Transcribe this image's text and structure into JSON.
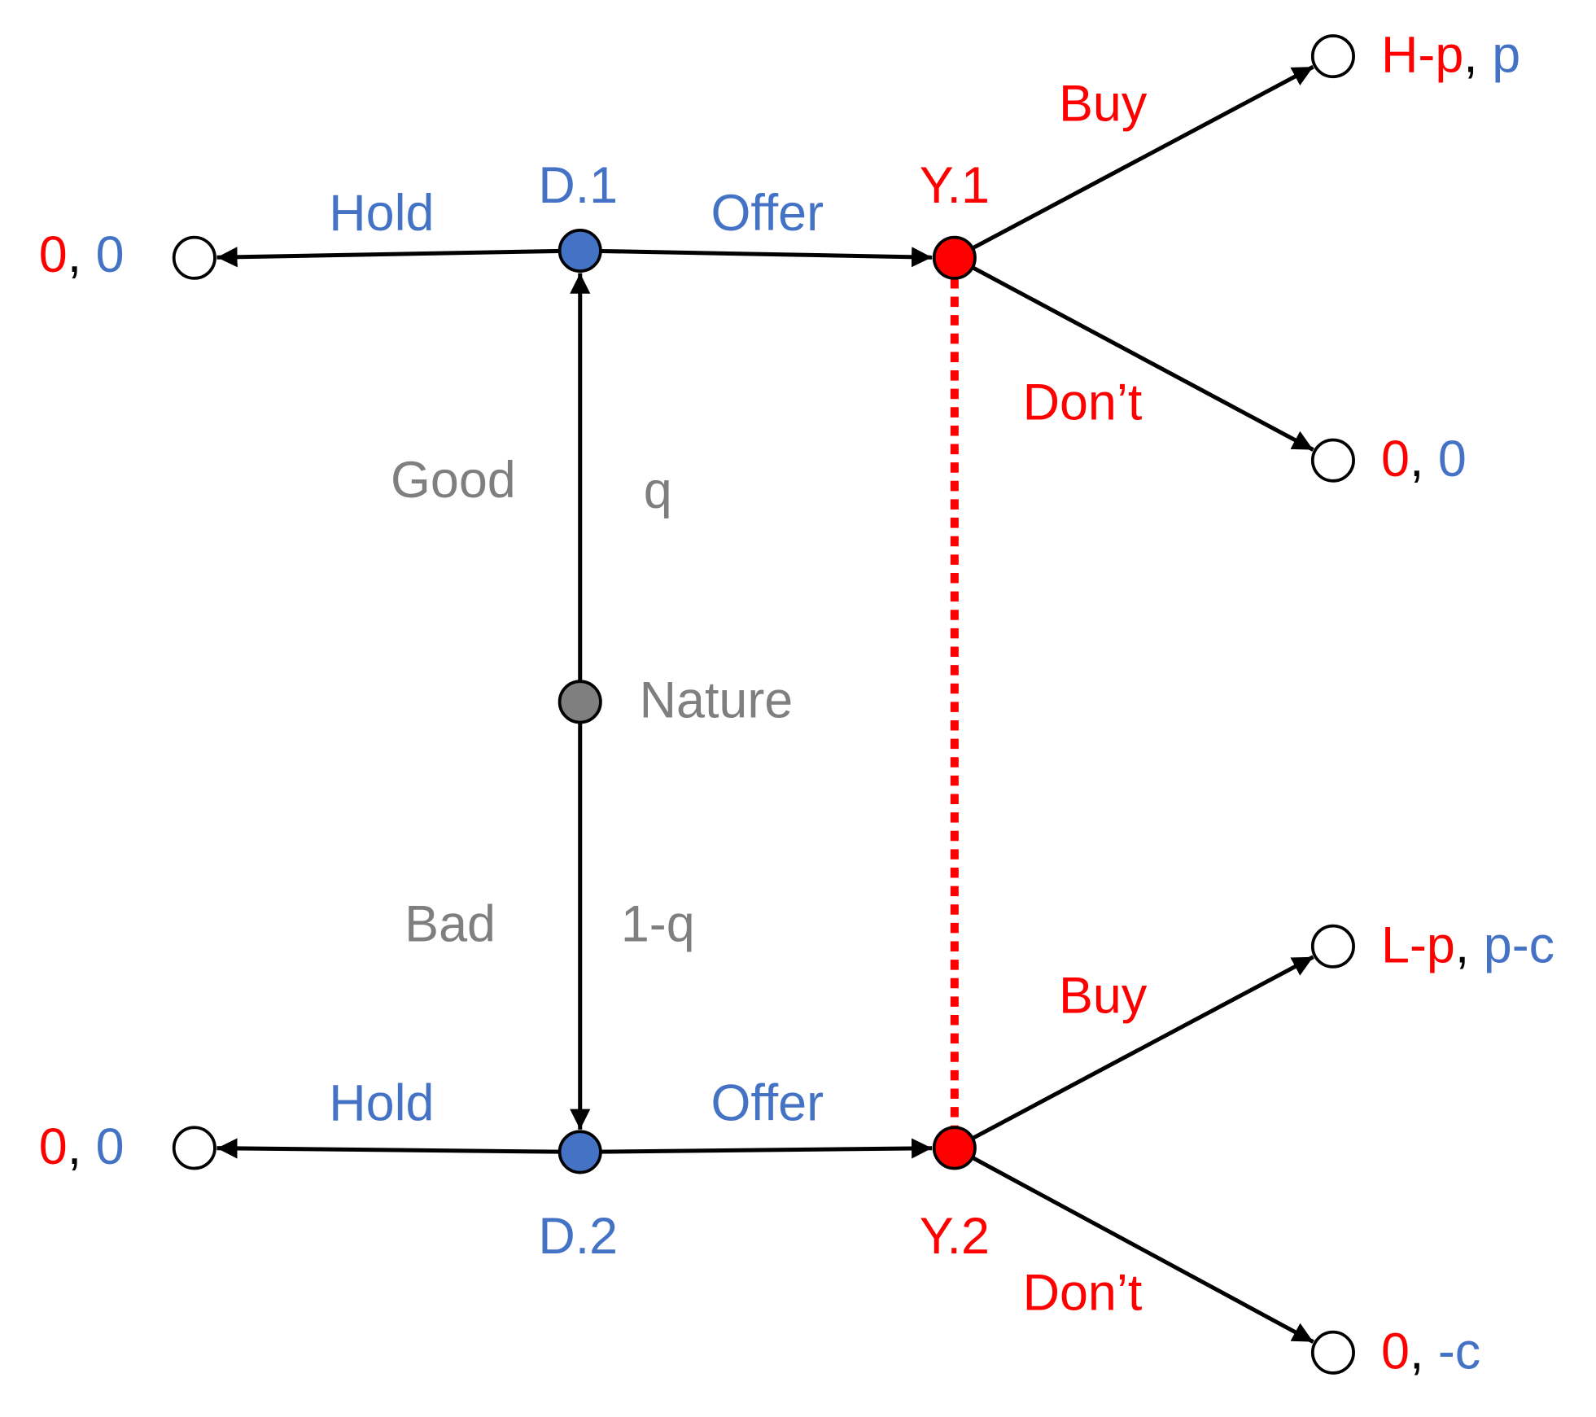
{
  "nodes": [
    {
      "label": "D.1"
    },
    {
      "label": "Y.1"
    },
    {
      "label": "Nature"
    },
    {
      "label": "D.2"
    },
    {
      "label": "Y.2"
    }
  ],
  "edges": [
    {
      "label": "Hold"
    },
    {
      "label": "Offer"
    },
    {
      "label": "Buy"
    },
    {
      "label": "Don’t"
    },
    {
      "label": "Good",
      "probability": "q"
    },
    {
      "label": "Bad",
      "probability": "1-q"
    },
    {
      "label": "Hold"
    },
    {
      "label": "Offer"
    },
    {
      "label": "Buy"
    },
    {
      "label": "Don’t"
    }
  ],
  "payoffs": [
    [
      "0",
      ", ",
      "0"
    ],
    [
      "H-p",
      ", ",
      "p"
    ],
    [
      "0",
      ", ",
      "0"
    ],
    [
      "0",
      ", ",
      "0"
    ],
    [
      "L-p",
      ", ",
      "p-c"
    ],
    [
      "0",
      ", ",
      "-c"
    ]
  ]
}
